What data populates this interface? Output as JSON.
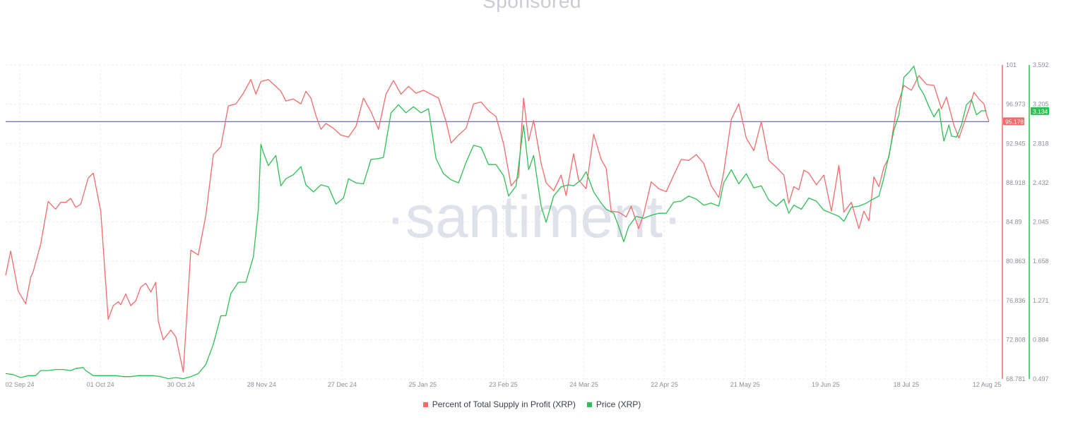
{
  "header": {
    "title": "Sponsored"
  },
  "watermark": "·santiment·",
  "chart_data": {
    "type": "line",
    "title": "",
    "xlabel": "",
    "x_ticks": [
      "02 Sep 24",
      "01 Oct 24",
      "30 Oct 24",
      "28 Nov 24",
      "27 Dec 24",
      "25 Jan 25",
      "23 Feb 25",
      "24 Mar 25",
      "22 Apr 25",
      "21 May 25",
      "19 Jun 25",
      "18 Jul 25",
      "12 Aug 25"
    ],
    "left_axis": {
      "ticks": [
        "101",
        "96.973",
        "92.945",
        "88.918",
        "84.89",
        "80.863",
        "76.836",
        "72.808",
        "68.781"
      ],
      "min": 68.781,
      "max": 101,
      "color": "#f26b6b"
    },
    "right_axis": {
      "ticks": [
        "3.592",
        "3.205",
        "2.818",
        "2.432",
        "2.045",
        "1.658",
        "1.271",
        "0.884",
        "0.497"
      ],
      "min": 0.497,
      "max": 3.592,
      "color": "#2fbf55"
    },
    "reference_line": {
      "value": 95.178,
      "color": "#6f6fb8"
    },
    "current_values": {
      "profit": "95.178",
      "price": "3.134"
    },
    "grid": true,
    "legend_position": "bottom",
    "series": [
      {
        "name": "Percent of Total Supply in Profit (XRP)",
        "color": "#f26b6b",
        "axis": "left",
        "points": [
          [
            0,
            79.4
          ],
          [
            2,
            81.9
          ],
          [
            5,
            77.8
          ],
          [
            8,
            76.5
          ],
          [
            10,
            79.2
          ],
          [
            11,
            79.8
          ],
          [
            14,
            82.6
          ],
          [
            17,
            87.0
          ],
          [
            20,
            86.2
          ],
          [
            22,
            86.9
          ],
          [
            24,
            86.9
          ],
          [
            26,
            87.3
          ],
          [
            28,
            86.4
          ],
          [
            30,
            86.7
          ],
          [
            33,
            89.4
          ],
          [
            35,
            89.9
          ],
          [
            38,
            86.0
          ],
          [
            41,
            74.9
          ],
          [
            43,
            76.3
          ],
          [
            45,
            76.7
          ],
          [
            46,
            76.4
          ],
          [
            48,
            77.5
          ],
          [
            50,
            76.3
          ],
          [
            52,
            76.8
          ],
          [
            54,
            78.2
          ],
          [
            56,
            78.6
          ],
          [
            58,
            77.7
          ],
          [
            60,
            78.7
          ],
          [
            61,
            74.7
          ],
          [
            63,
            72.8
          ],
          [
            66,
            73.8
          ],
          [
            68,
            73.1
          ],
          [
            71,
            69.5
          ],
          [
            74,
            82.0
          ],
          [
            77,
            81.5
          ],
          [
            80,
            85.6
          ],
          [
            83,
            91.8
          ],
          [
            86,
            92.6
          ],
          [
            89,
            96.8
          ],
          [
            92,
            97.0
          ],
          [
            95,
            98.1
          ],
          [
            98,
            99.5
          ],
          [
            100,
            98.0
          ],
          [
            102,
            99.3
          ],
          [
            105,
            99.5
          ],
          [
            108,
            98.8
          ],
          [
            110,
            98.3
          ],
          [
            112,
            97.3
          ],
          [
            115,
            97.5
          ],
          [
            118,
            97.0
          ],
          [
            120,
            98.3
          ],
          [
            122,
            97.6
          ],
          [
            124,
            95.8
          ],
          [
            126,
            94.4
          ],
          [
            128,
            95.0
          ],
          [
            131,
            94.5
          ],
          [
            134,
            93.8
          ],
          [
            137,
            93.6
          ],
          [
            140,
            94.7
          ],
          [
            143,
            97.6
          ],
          [
            146,
            96.2
          ],
          [
            149,
            94.4
          ],
          [
            152,
            98.0
          ],
          [
            155,
            99.4
          ],
          [
            158,
            98.0
          ],
          [
            161,
            98.8
          ],
          [
            164,
            98.1
          ],
          [
            167,
            98.4
          ],
          [
            170,
            98.0
          ],
          [
            173,
            97.6
          ],
          [
            176,
            95.2
          ],
          [
            178,
            93.0
          ],
          [
            181,
            93.8
          ],
          [
            184,
            94.5
          ],
          [
            187,
            97.0
          ],
          [
            190,
            97.2
          ],
          [
            193,
            96.3
          ],
          [
            196,
            95.7
          ],
          [
            199,
            92.9
          ],
          [
            202,
            88.6
          ],
          [
            205,
            89.5
          ],
          [
            207,
            97.6
          ],
          [
            209,
            93.2
          ],
          [
            211,
            95.3
          ],
          [
            214,
            90.9
          ],
          [
            216,
            88.9
          ],
          [
            219,
            88.1
          ],
          [
            222,
            89.7
          ],
          [
            224,
            87.6
          ],
          [
            227,
            91.9
          ],
          [
            229,
            89.2
          ],
          [
            232,
            88.3
          ],
          [
            235,
            93.9
          ],
          [
            238,
            91.3
          ],
          [
            240,
            90.4
          ],
          [
            242,
            86.0
          ],
          [
            245,
            85.9
          ],
          [
            248,
            85.4
          ],
          [
            250,
            86.5
          ],
          [
            253,
            84.2
          ],
          [
            255,
            85.7
          ],
          [
            258,
            89.0
          ],
          [
            261,
            88.3
          ],
          [
            264,
            88.0
          ],
          [
            267,
            89.7
          ],
          [
            270,
            91.3
          ],
          [
            273,
            91.2
          ],
          [
            276,
            91.8
          ],
          [
            279,
            90.9
          ],
          [
            282,
            88.6
          ],
          [
            285,
            87.4
          ],
          [
            287,
            90.0
          ],
          [
            290,
            95.4
          ],
          [
            293,
            97.0
          ],
          [
            296,
            93.5
          ],
          [
            299,
            92.2
          ],
          [
            302,
            95.2
          ],
          [
            305,
            91.2
          ],
          [
            308,
            90.5
          ],
          [
            311,
            89.7
          ],
          [
            313,
            86.8
          ],
          [
            315,
            88.5
          ],
          [
            317,
            88.2
          ],
          [
            319,
            90.2
          ],
          [
            321,
            89.9
          ],
          [
            324,
            88.7
          ],
          [
            327,
            89.7
          ],
          [
            330,
            86.0
          ],
          [
            333,
            90.7
          ],
          [
            335,
            85.9
          ],
          [
            338,
            86.9
          ],
          [
            341,
            84.2
          ],
          [
            343,
            86.0
          ],
          [
            345,
            85.0
          ],
          [
            347,
            89.5
          ],
          [
            349,
            88.5
          ],
          [
            351,
            90.5
          ],
          [
            353,
            91.5
          ],
          [
            356,
            96.5
          ],
          [
            359,
            98.9
          ],
          [
            362,
            98.4
          ],
          [
            365,
            99.9
          ],
          [
            368,
            99.0
          ],
          [
            371,
            98.9
          ],
          [
            374,
            96.5
          ],
          [
            376,
            97.7
          ],
          [
            379,
            94.8
          ],
          [
            381,
            93.5
          ],
          [
            383,
            95.0
          ],
          [
            385,
            96.5
          ],
          [
            387,
            98.2
          ],
          [
            389,
            97.5
          ],
          [
            391,
            97.0
          ],
          [
            392,
            95.9
          ],
          [
            393,
            95.2
          ]
        ]
      },
      {
        "name": "Price (XRP)",
        "color": "#2fbf55",
        "axis": "right",
        "points": [
          [
            0,
            0.55
          ],
          [
            3,
            0.54
          ],
          [
            6,
            0.51
          ],
          [
            9,
            0.53
          ],
          [
            12,
            0.53
          ],
          [
            14,
            0.58
          ],
          [
            17,
            0.58
          ],
          [
            20,
            0.59
          ],
          [
            23,
            0.59
          ],
          [
            26,
            0.58
          ],
          [
            28,
            0.6
          ],
          [
            31,
            0.61
          ],
          [
            32,
            0.58
          ],
          [
            35,
            0.53
          ],
          [
            38,
            0.53
          ],
          [
            41,
            0.53
          ],
          [
            44,
            0.53
          ],
          [
            47,
            0.52
          ],
          [
            50,
            0.52
          ],
          [
            53,
            0.53
          ],
          [
            56,
            0.53
          ],
          [
            59,
            0.53
          ],
          [
            62,
            0.52
          ],
          [
            65,
            0.5
          ],
          [
            68,
            0.51
          ],
          [
            71,
            0.5
          ],
          [
            74,
            0.52
          ],
          [
            77,
            0.55
          ],
          [
            80,
            0.64
          ],
          [
            83,
            0.84
          ],
          [
            86,
            1.12
          ],
          [
            88,
            1.12
          ],
          [
            90,
            1.34
          ],
          [
            93,
            1.45
          ],
          [
            96,
            1.45
          ],
          [
            99,
            1.7
          ],
          [
            101,
            2.17
          ],
          [
            102,
            2.81
          ],
          [
            103,
            2.73
          ],
          [
            105,
            2.6
          ],
          [
            108,
            2.7
          ],
          [
            110,
            2.4
          ],
          [
            112,
            2.47
          ],
          [
            115,
            2.51
          ],
          [
            118,
            2.59
          ],
          [
            120,
            2.41
          ],
          [
            123,
            2.34
          ],
          [
            126,
            2.41
          ],
          [
            129,
            2.39
          ],
          [
            132,
            2.22
          ],
          [
            135,
            2.28
          ],
          [
            137,
            2.47
          ],
          [
            140,
            2.43
          ],
          [
            143,
            2.42
          ],
          [
            146,
            2.66
          ],
          [
            149,
            2.67
          ],
          [
            151,
            2.68
          ],
          [
            154,
            3.12
          ],
          [
            157,
            3.2
          ],
          [
            160,
            3.12
          ],
          [
            163,
            3.18
          ],
          [
            166,
            3.12
          ],
          [
            169,
            3.16
          ],
          [
            172,
            2.67
          ],
          [
            175,
            2.52
          ],
          [
            178,
            2.46
          ],
          [
            181,
            2.43
          ],
          [
            184,
            2.63
          ],
          [
            187,
            2.8
          ],
          [
            190,
            2.78
          ],
          [
            193,
            2.61
          ],
          [
            196,
            2.61
          ],
          [
            199,
            2.5
          ],
          [
            201,
            2.3
          ],
          [
            204,
            2.4
          ],
          [
            207,
            3.0
          ],
          [
            209,
            2.56
          ],
          [
            211,
            2.7
          ],
          [
            214,
            2.2
          ],
          [
            216,
            2.04
          ],
          [
            219,
            2.3
          ],
          [
            222,
            2.39
          ],
          [
            225,
            2.41
          ],
          [
            227,
            2.4
          ],
          [
            230,
            2.46
          ],
          [
            232,
            2.54
          ],
          [
            235,
            2.34
          ],
          [
            238,
            2.23
          ],
          [
            240,
            2.17
          ],
          [
            243,
            2.13
          ],
          [
            245,
            2.0
          ],
          [
            247,
            1.85
          ],
          [
            249,
            2.0
          ],
          [
            252,
            2.1
          ],
          [
            255,
            2.08
          ],
          [
            258,
            2.11
          ],
          [
            261,
            2.13
          ],
          [
            264,
            2.13
          ],
          [
            267,
            2.24
          ],
          [
            270,
            2.25
          ],
          [
            273,
            2.3
          ],
          [
            276,
            2.27
          ],
          [
            279,
            2.21
          ],
          [
            282,
            2.23
          ],
          [
            285,
            2.2
          ],
          [
            287,
            2.43
          ],
          [
            290,
            2.56
          ],
          [
            293,
            2.42
          ],
          [
            296,
            2.52
          ],
          [
            299,
            2.38
          ],
          [
            302,
            2.4
          ],
          [
            305,
            2.26
          ],
          [
            308,
            2.2
          ],
          [
            311,
            2.27
          ],
          [
            313,
            2.13
          ],
          [
            315,
            2.21
          ],
          [
            318,
            2.17
          ],
          [
            321,
            2.28
          ],
          [
            324,
            2.25
          ],
          [
            327,
            2.16
          ],
          [
            330,
            2.13
          ],
          [
            333,
            2.1
          ],
          [
            335,
            2.05
          ],
          [
            338,
            2.19
          ],
          [
            341,
            2.2
          ],
          [
            344,
            2.23
          ],
          [
            346,
            2.26
          ],
          [
            349,
            2.3
          ],
          [
            351,
            2.48
          ],
          [
            353,
            2.7
          ],
          [
            355,
            2.95
          ],
          [
            357,
            3.1
          ],
          [
            359,
            3.47
          ],
          [
            361,
            3.52
          ],
          [
            363,
            3.58
          ],
          [
            365,
            3.38
          ],
          [
            367,
            3.3
          ],
          [
            369,
            3.18
          ],
          [
            371,
            3.08
          ],
          [
            373,
            3.16
          ],
          [
            374,
            2.99
          ],
          [
            375,
            2.84
          ],
          [
            377,
            3.0
          ],
          [
            378,
            2.89
          ],
          [
            380,
            2.88
          ],
          [
            382,
            3.0
          ],
          [
            384,
            3.2
          ],
          [
            386,
            3.25
          ],
          [
            388,
            3.1
          ],
          [
            390,
            3.14
          ],
          [
            392,
            3.14
          ]
        ]
      }
    ]
  }
}
